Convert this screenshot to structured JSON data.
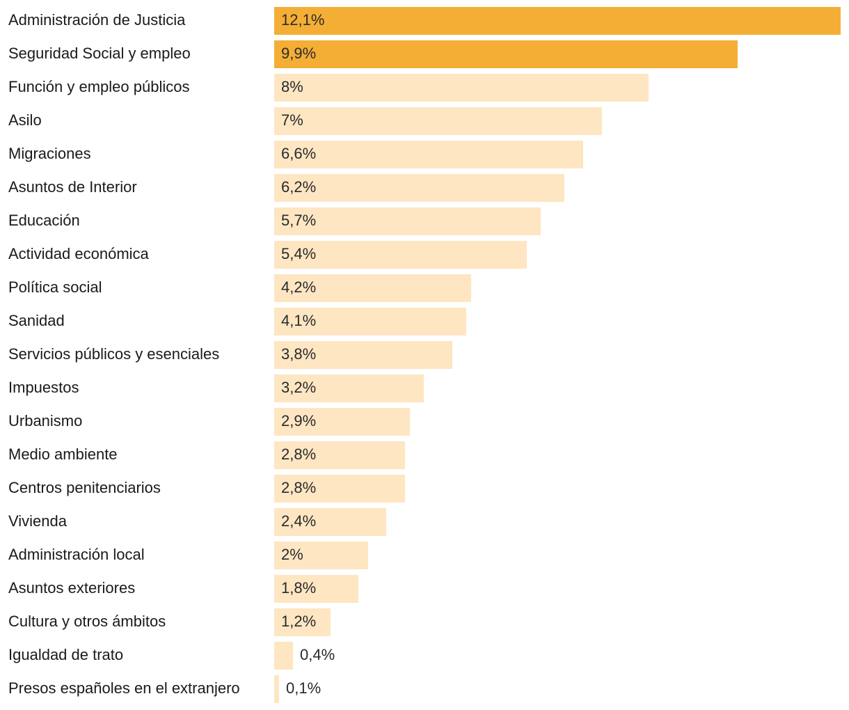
{
  "chart_data": {
    "type": "bar",
    "orientation": "horizontal",
    "title": "",
    "xlabel": "",
    "ylabel": "",
    "xlim": [
      0,
      12.1
    ],
    "value_suffix": "%",
    "colors": {
      "highlight": "#f4ae35",
      "normal": "#fee6c3"
    },
    "categories": [
      "Administración de Justicia",
      "Seguridad Social y empleo",
      "Función y empleo públicos",
      "Asilo",
      "Migraciones",
      "Asuntos de Interior",
      "Educación",
      "Actividad económica",
      "Política social",
      "Sanidad",
      "Servicios públicos y esenciales",
      "Impuestos",
      "Urbanismo",
      "Medio ambiente",
      "Centros penitenciarios",
      "Vivienda",
      "Administración local",
      "Asuntos exteriores",
      "Cultura y otros ámbitos",
      "Igualdad de trato",
      "Presos españoles en el extranjero"
    ],
    "values": [
      12.1,
      9.9,
      8,
      7,
      6.6,
      6.2,
      5.7,
      5.4,
      4.2,
      4.1,
      3.8,
      3.2,
      2.9,
      2.8,
      2.8,
      2.4,
      2,
      1.8,
      1.2,
      0.4,
      0.1
    ],
    "value_labels": [
      "12,1%",
      "9,9%",
      "8%",
      "7%",
      "6,6%",
      "6,2%",
      "5,7%",
      "5,4%",
      "4,2%",
      "4,1%",
      "3,8%",
      "3,2%",
      "2,9%",
      "2,8%",
      "2,8%",
      "2,4%",
      "2%",
      "1,8%",
      "1,2%",
      "0,4%",
      "0,1%"
    ],
    "highlighted": [
      true,
      true,
      false,
      false,
      false,
      false,
      false,
      false,
      false,
      false,
      false,
      false,
      false,
      false,
      false,
      false,
      false,
      false,
      false,
      false,
      false
    ]
  }
}
